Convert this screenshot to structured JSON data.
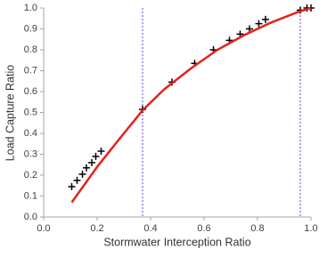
{
  "chart_data": {
    "type": "scatter",
    "xlabel": "Stormwater Interception Ratio",
    "ylabel": "Load Capture Ratio",
    "xlim": [
      0,
      1.0
    ],
    "ylim": [
      0,
      1.0
    ],
    "xticks": [
      {
        "value": 0,
        "label": "0.0"
      },
      0.2,
      0.4,
      0.6,
      0.8,
      {
        "value": 1,
        "label": "1.0"
      }
    ],
    "yticks": [
      {
        "value": 0,
        "label": "0.0"
      },
      0.1,
      0.2,
      0.3,
      0.4,
      0.5,
      0.6,
      0.7,
      0.8,
      0.9,
      {
        "value": 1,
        "label": "1.0"
      }
    ],
    "grid": false,
    "vlines": {
      "x": [
        0.37,
        0.96
      ],
      "color": "#4a4ae0"
    },
    "series": [
      {
        "mode": "markers",
        "marker": "plus",
        "color": "#000000",
        "x": [
          0.105,
          0.125,
          0.145,
          0.16,
          0.18,
          0.195,
          0.215,
          0.37,
          0.48,
          0.565,
          0.635,
          0.695,
          0.735,
          0.77,
          0.805,
          0.83,
          0.96,
          0.985,
          1.0
        ],
        "values": [
          0.145,
          0.175,
          0.205,
          0.235,
          0.26,
          0.29,
          0.315,
          0.515,
          0.645,
          0.735,
          0.8,
          0.845,
          0.875,
          0.9,
          0.925,
          0.945,
          0.99,
          1.0,
          1.0
        ]
      },
      {
        "mode": "line",
        "color": "#e8201a",
        "x": [
          0.105,
          0.15,
          0.2,
          0.25,
          0.3,
          0.37,
          0.45,
          0.55,
          0.65,
          0.75,
          0.85,
          0.95,
          1.0
        ],
        "values": [
          0.07,
          0.15,
          0.24,
          0.32,
          0.4,
          0.51,
          0.61,
          0.71,
          0.8,
          0.87,
          0.93,
          0.98,
          1.0
        ]
      }
    ]
  }
}
